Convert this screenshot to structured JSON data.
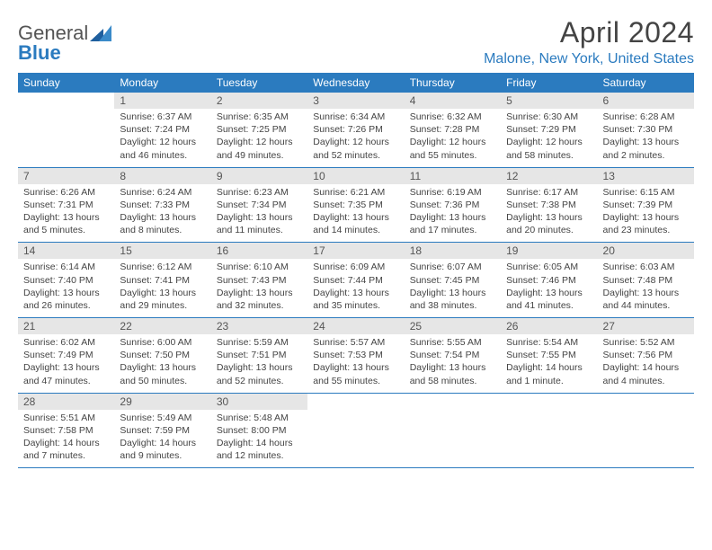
{
  "brand": {
    "gray": "General",
    "blue": "Blue"
  },
  "title": "April 2024",
  "location": "Malone, New York, United States",
  "colors": {
    "header_bg": "#2b7bbf",
    "header_text": "#ffffff",
    "daynum_bg": "#e6e6e6",
    "text": "#444444",
    "row_border": "#2b7bbf",
    "page_bg": "#ffffff"
  },
  "day_names": [
    "Sunday",
    "Monday",
    "Tuesday",
    "Wednesday",
    "Thursday",
    "Friday",
    "Saturday"
  ],
  "weeks": [
    [
      null,
      {
        "n": "1",
        "sr": "Sunrise: 6:37 AM",
        "ss": "Sunset: 7:24 PM",
        "dl": "Daylight: 12 hours and 46 minutes."
      },
      {
        "n": "2",
        "sr": "Sunrise: 6:35 AM",
        "ss": "Sunset: 7:25 PM",
        "dl": "Daylight: 12 hours and 49 minutes."
      },
      {
        "n": "3",
        "sr": "Sunrise: 6:34 AM",
        "ss": "Sunset: 7:26 PM",
        "dl": "Daylight: 12 hours and 52 minutes."
      },
      {
        "n": "4",
        "sr": "Sunrise: 6:32 AM",
        "ss": "Sunset: 7:28 PM",
        "dl": "Daylight: 12 hours and 55 minutes."
      },
      {
        "n": "5",
        "sr": "Sunrise: 6:30 AM",
        "ss": "Sunset: 7:29 PM",
        "dl": "Daylight: 12 hours and 58 minutes."
      },
      {
        "n": "6",
        "sr": "Sunrise: 6:28 AM",
        "ss": "Sunset: 7:30 PM",
        "dl": "Daylight: 13 hours and 2 minutes."
      }
    ],
    [
      {
        "n": "7",
        "sr": "Sunrise: 6:26 AM",
        "ss": "Sunset: 7:31 PM",
        "dl": "Daylight: 13 hours and 5 minutes."
      },
      {
        "n": "8",
        "sr": "Sunrise: 6:24 AM",
        "ss": "Sunset: 7:33 PM",
        "dl": "Daylight: 13 hours and 8 minutes."
      },
      {
        "n": "9",
        "sr": "Sunrise: 6:23 AM",
        "ss": "Sunset: 7:34 PM",
        "dl": "Daylight: 13 hours and 11 minutes."
      },
      {
        "n": "10",
        "sr": "Sunrise: 6:21 AM",
        "ss": "Sunset: 7:35 PM",
        "dl": "Daylight: 13 hours and 14 minutes."
      },
      {
        "n": "11",
        "sr": "Sunrise: 6:19 AM",
        "ss": "Sunset: 7:36 PM",
        "dl": "Daylight: 13 hours and 17 minutes."
      },
      {
        "n": "12",
        "sr": "Sunrise: 6:17 AM",
        "ss": "Sunset: 7:38 PM",
        "dl": "Daylight: 13 hours and 20 minutes."
      },
      {
        "n": "13",
        "sr": "Sunrise: 6:15 AM",
        "ss": "Sunset: 7:39 PM",
        "dl": "Daylight: 13 hours and 23 minutes."
      }
    ],
    [
      {
        "n": "14",
        "sr": "Sunrise: 6:14 AM",
        "ss": "Sunset: 7:40 PM",
        "dl": "Daylight: 13 hours and 26 minutes."
      },
      {
        "n": "15",
        "sr": "Sunrise: 6:12 AM",
        "ss": "Sunset: 7:41 PM",
        "dl": "Daylight: 13 hours and 29 minutes."
      },
      {
        "n": "16",
        "sr": "Sunrise: 6:10 AM",
        "ss": "Sunset: 7:43 PM",
        "dl": "Daylight: 13 hours and 32 minutes."
      },
      {
        "n": "17",
        "sr": "Sunrise: 6:09 AM",
        "ss": "Sunset: 7:44 PM",
        "dl": "Daylight: 13 hours and 35 minutes."
      },
      {
        "n": "18",
        "sr": "Sunrise: 6:07 AM",
        "ss": "Sunset: 7:45 PM",
        "dl": "Daylight: 13 hours and 38 minutes."
      },
      {
        "n": "19",
        "sr": "Sunrise: 6:05 AM",
        "ss": "Sunset: 7:46 PM",
        "dl": "Daylight: 13 hours and 41 minutes."
      },
      {
        "n": "20",
        "sr": "Sunrise: 6:03 AM",
        "ss": "Sunset: 7:48 PM",
        "dl": "Daylight: 13 hours and 44 minutes."
      }
    ],
    [
      {
        "n": "21",
        "sr": "Sunrise: 6:02 AM",
        "ss": "Sunset: 7:49 PM",
        "dl": "Daylight: 13 hours and 47 minutes."
      },
      {
        "n": "22",
        "sr": "Sunrise: 6:00 AM",
        "ss": "Sunset: 7:50 PM",
        "dl": "Daylight: 13 hours and 50 minutes."
      },
      {
        "n": "23",
        "sr": "Sunrise: 5:59 AM",
        "ss": "Sunset: 7:51 PM",
        "dl": "Daylight: 13 hours and 52 minutes."
      },
      {
        "n": "24",
        "sr": "Sunrise: 5:57 AM",
        "ss": "Sunset: 7:53 PM",
        "dl": "Daylight: 13 hours and 55 minutes."
      },
      {
        "n": "25",
        "sr": "Sunrise: 5:55 AM",
        "ss": "Sunset: 7:54 PM",
        "dl": "Daylight: 13 hours and 58 minutes."
      },
      {
        "n": "26",
        "sr": "Sunrise: 5:54 AM",
        "ss": "Sunset: 7:55 PM",
        "dl": "Daylight: 14 hours and 1 minute."
      },
      {
        "n": "27",
        "sr": "Sunrise: 5:52 AM",
        "ss": "Sunset: 7:56 PM",
        "dl": "Daylight: 14 hours and 4 minutes."
      }
    ],
    [
      {
        "n": "28",
        "sr": "Sunrise: 5:51 AM",
        "ss": "Sunset: 7:58 PM",
        "dl": "Daylight: 14 hours and 7 minutes."
      },
      {
        "n": "29",
        "sr": "Sunrise: 5:49 AM",
        "ss": "Sunset: 7:59 PM",
        "dl": "Daylight: 14 hours and 9 minutes."
      },
      {
        "n": "30",
        "sr": "Sunrise: 5:48 AM",
        "ss": "Sunset: 8:00 PM",
        "dl": "Daylight: 14 hours and 12 minutes."
      },
      null,
      null,
      null,
      null
    ]
  ]
}
